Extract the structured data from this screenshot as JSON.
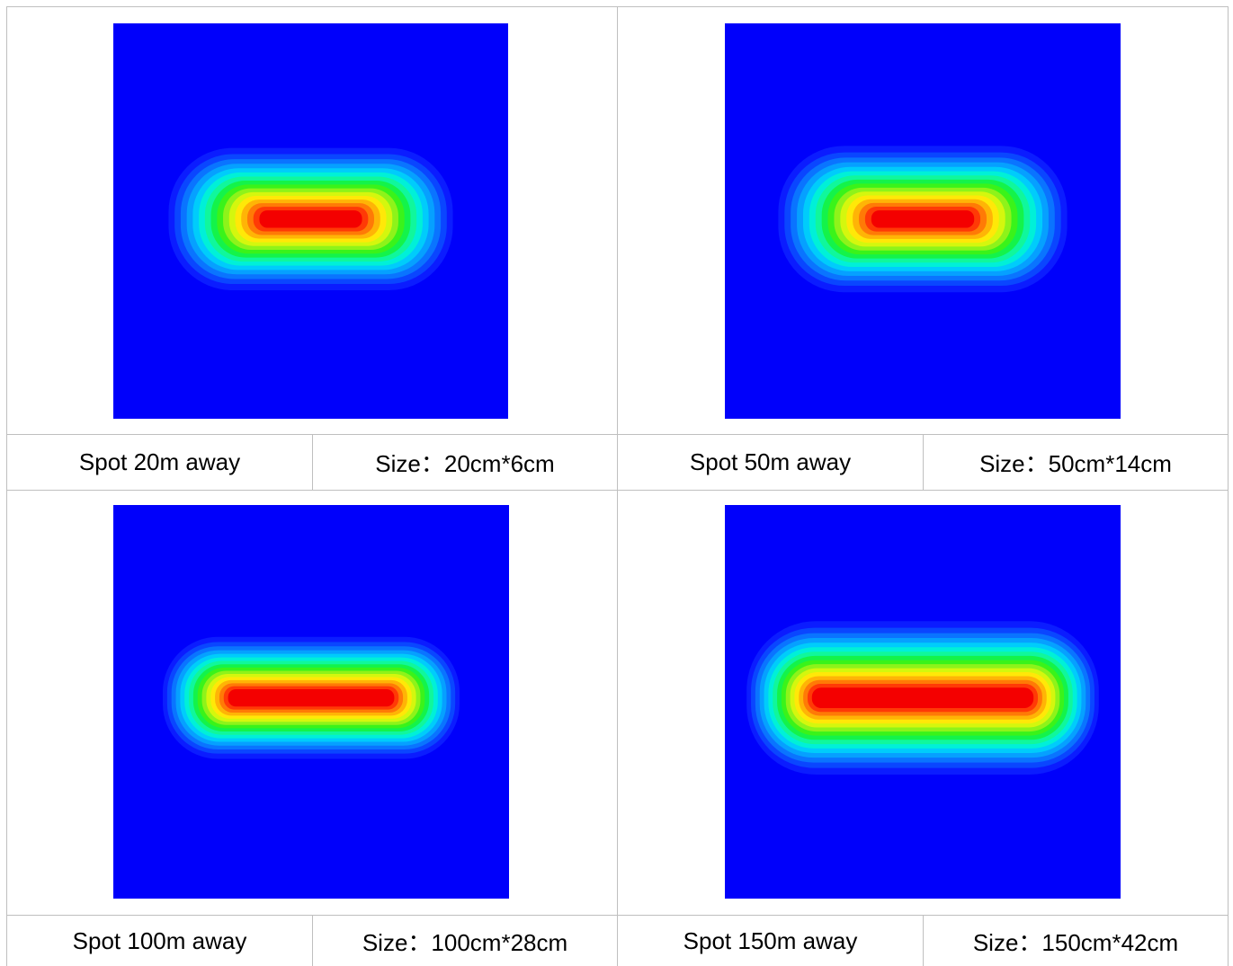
{
  "colors": {
    "background": "#0000fb",
    "grid_line": "#bfbfbf",
    "ramp": [
      "#0b1cff",
      "#0a46ff",
      "#0a74ff",
      "#06a0ff",
      "#00ccfb",
      "#00f0d8",
      "#10f79c",
      "#14f34a",
      "#3af31a",
      "#8ef31a",
      "#d4f70e",
      "#ffe808",
      "#ffb406",
      "#ff7a06",
      "#ff3a06",
      "#f40000"
    ]
  },
  "panels": [
    {
      "label": "Spot 20m away",
      "size": "Size：20cm*6cm"
    },
    {
      "label": "Spot 50m away",
      "size": "Size：50cm*14cm"
    },
    {
      "label": "Spot 100m away",
      "size": "Size：100cm*28cm"
    },
    {
      "label": "Spot 150m away",
      "size": "Size：150cm*42cm"
    }
  ]
}
